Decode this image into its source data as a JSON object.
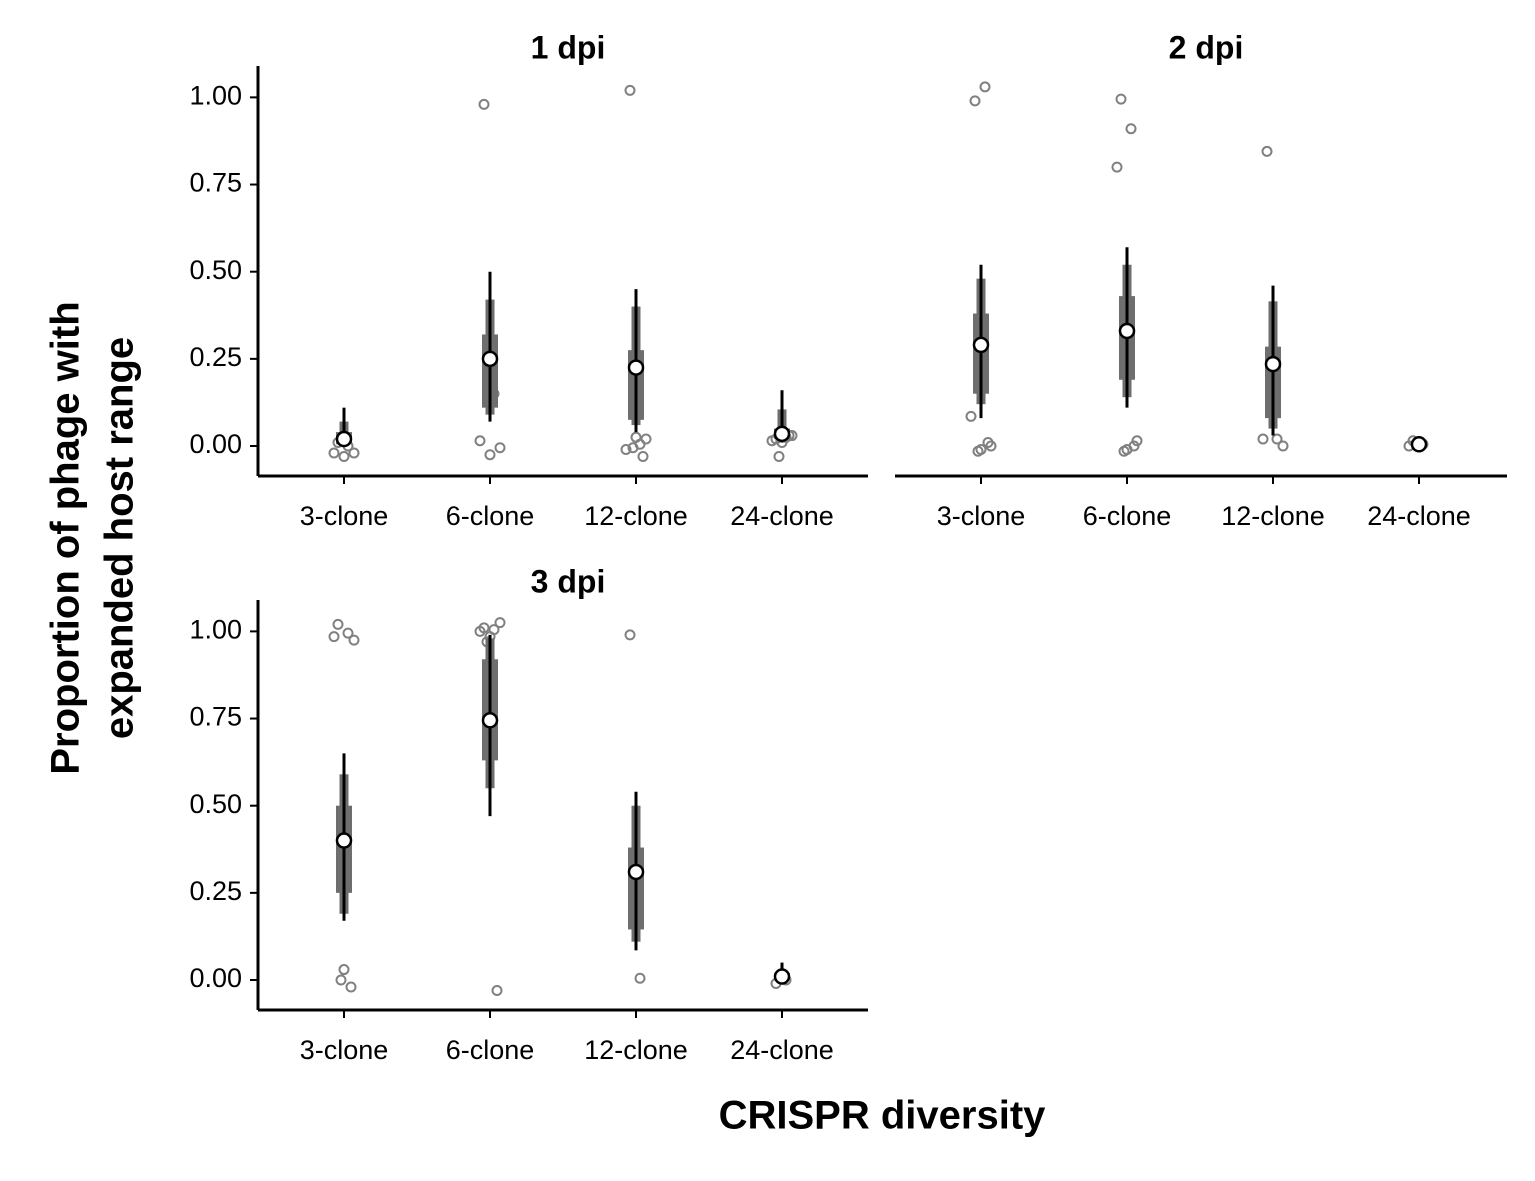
{
  "figure": {
    "xlabel": "CRISPR diversity",
    "ylabel": [
      "Proportion of phage with",
      "expanded host range"
    ]
  },
  "chart_data": [
    {
      "type": "pointinterval",
      "title": "1 dpi",
      "categories": [
        "3-clone",
        "6-clone",
        "12-clone",
        "24-clone"
      ],
      "ylim": [
        -0.086,
        1.09
      ],
      "yticks": [
        {
          "value": 0,
          "label": "0.00"
        },
        0.25,
        {
          "value": 0.5,
          "label": "0.50"
        },
        0.75,
        {
          "value": 1,
          "label": "1.00"
        }
      ],
      "y_axis": true,
      "interval_color": "#6e6e6e",
      "line_color": "#000000",
      "point_color": "#808080",
      "estimate": [
        0.02,
        0.25,
        0.225,
        0.035
      ],
      "ci50": [
        [
          0.005,
          0.04
        ],
        [
          0.11,
          0.32
        ],
        [
          0.075,
          0.275
        ],
        [
          0.02,
          0.05
        ]
      ],
      "ci80": [
        [
          0.002,
          0.07
        ],
        [
          0.09,
          0.42
        ],
        [
          0.06,
          0.4
        ],
        [
          0.015,
          0.105
        ]
      ],
      "ci95": [
        [
          0,
          0.11
        ],
        [
          0.07,
          0.5
        ],
        [
          0.04,
          0.45
        ],
        [
          0.01,
          0.16
        ]
      ],
      "points": [
        [
          0.01,
          0,
          -0.02,
          -0.02,
          -0.03
        ],
        [
          0.98,
          0.15,
          0.015,
          -0.005,
          -0.025
        ],
        [
          1.02,
          0.005,
          -0.01,
          0.02,
          0.025,
          -0.005,
          -0.03
        ],
        [
          0.02,
          0.025,
          0.015,
          0.03,
          0.01,
          -0.03,
          0.03
        ]
      ]
    },
    {
      "type": "pointinterval",
      "title": "2 dpi",
      "categories": [
        "3-clone",
        "6-clone",
        "12-clone",
        "24-clone"
      ],
      "ylim": [
        -0.086,
        1.09
      ],
      "yticks": [],
      "y_axis": false,
      "interval_color": "#6e6e6e",
      "line_color": "#000000",
      "point_color": "#808080",
      "estimate": [
        0.29,
        0.33,
        0.235,
        0.005
      ],
      "ci50": [
        [
          0.15,
          0.38
        ],
        [
          0.19,
          0.43
        ],
        [
          0.08,
          0.285
        ],
        [
          0,
          0.01
        ]
      ],
      "ci80": [
        [
          0.12,
          0.48
        ],
        [
          0.14,
          0.52
        ],
        [
          0.05,
          0.415
        ],
        [
          0,
          0.01
        ]
      ],
      "ci95": [
        [
          0.08,
          0.52
        ],
        [
          0.11,
          0.57
        ],
        [
          0.03,
          0.46
        ],
        [
          0,
          0.01
        ]
      ],
      "points": [
        [
          0.99,
          1.03,
          0.085,
          0,
          -0.01,
          -0.015,
          0.01
        ],
        [
          0.995,
          0.91,
          0.8,
          0.015,
          -0.01,
          -0.015,
          0
        ],
        [
          0.845,
          0.02,
          0.02,
          0
        ],
        [
          0.015,
          0.005,
          0
        ]
      ]
    },
    {
      "type": "pointinterval",
      "title": "3 dpi",
      "categories": [
        "3-clone",
        "6-clone",
        "12-clone",
        "24-clone"
      ],
      "ylim": [
        -0.086,
        1.09
      ],
      "yticks": [
        {
          "value": 0,
          "label": "0.00"
        },
        0.25,
        {
          "value": 0.5,
          "label": "0.50"
        },
        0.75,
        {
          "value": 1,
          "label": "1.00"
        }
      ],
      "y_axis": true,
      "interval_color": "#6e6e6e",
      "line_color": "#000000",
      "point_color": "#808080",
      "estimate": [
        0.4,
        0.745,
        0.31,
        0.01
      ],
      "ci50": [
        [
          0.25,
          0.5
        ],
        [
          0.63,
          0.92
        ],
        [
          0.145,
          0.38
        ],
        [
          0,
          0.02
        ]
      ],
      "ci80": [
        [
          0.19,
          0.59
        ],
        [
          0.55,
          0.98
        ],
        [
          0.11,
          0.5
        ],
        [
          0,
          0.03
        ]
      ],
      "ci95": [
        [
          0.17,
          0.65
        ],
        [
          0.47,
          0.99
        ],
        [
          0.085,
          0.54
        ],
        [
          0,
          0.05
        ]
      ],
      "points": [
        [
          1.02,
          0.995,
          0.985,
          0.975,
          0.03,
          0,
          -0.02
        ],
        [
          1.01,
          1.005,
          1,
          1.025,
          0.985,
          0.97,
          -0.03
        ],
        [
          0.99,
          0.005
        ],
        [
          -0.01,
          0
        ]
      ]
    }
  ]
}
